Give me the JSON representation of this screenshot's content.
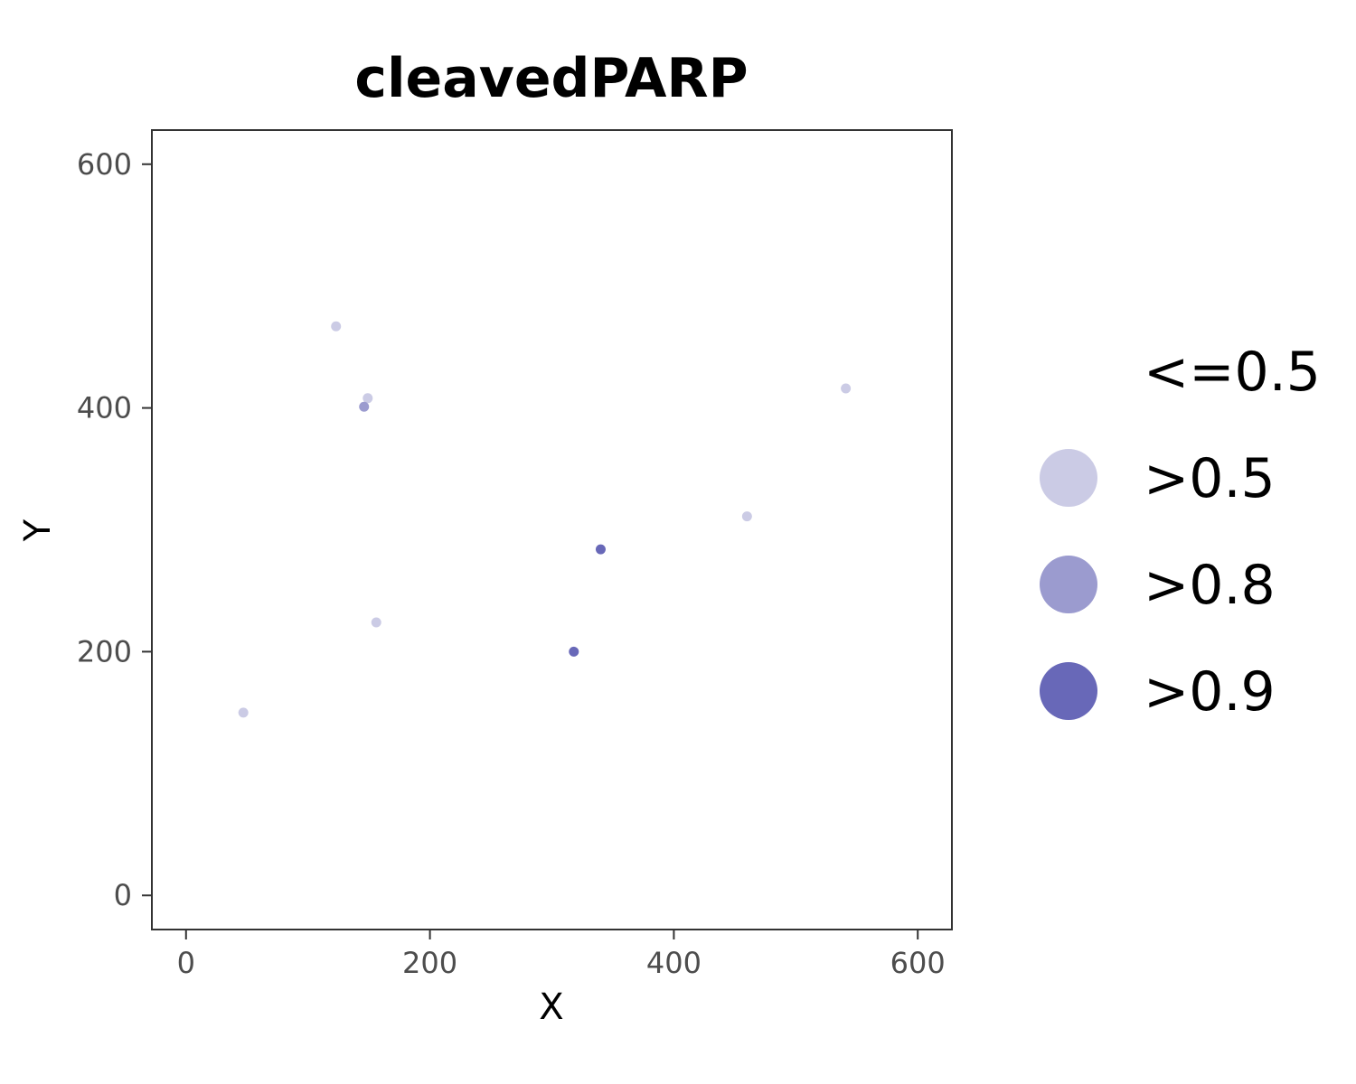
{
  "chart_data": {
    "type": "scatter",
    "title": "cleavedPARP",
    "xlabel": "X",
    "ylabel": "Y",
    "xlim": [
      -28,
      628
    ],
    "ylim": [
      -28,
      628
    ],
    "xticks": [
      0,
      200,
      400,
      600
    ],
    "yticks": [
      0,
      200,
      400,
      600
    ],
    "grid": false,
    "legend_position": "right",
    "legend": [
      {
        "label": "<=0.5",
        "color": "#ffffff",
        "show_symbol": false
      },
      {
        "label": ">0.5",
        "color": "#cbcbe5"
      },
      {
        "label": ">0.8",
        "color": "#9b9bcf"
      },
      {
        "label": ">0.9",
        "color": "#6868b8"
      }
    ],
    "points": [
      {
        "x": 123,
        "y": 467,
        "group": ">0.5"
      },
      {
        "x": 149,
        "y": 408,
        "group": ">0.5"
      },
      {
        "x": 146,
        "y": 401,
        "group": ">0.8"
      },
      {
        "x": 541,
        "y": 416,
        "group": ">0.5"
      },
      {
        "x": 460,
        "y": 311,
        "group": ">0.5"
      },
      {
        "x": 340,
        "y": 284,
        "group": ">0.9"
      },
      {
        "x": 156,
        "y": 224,
        "group": ">0.5"
      },
      {
        "x": 318,
        "y": 200,
        "group": ">0.9"
      },
      {
        "x": 47,
        "y": 150,
        "group": ">0.5"
      }
    ]
  }
}
